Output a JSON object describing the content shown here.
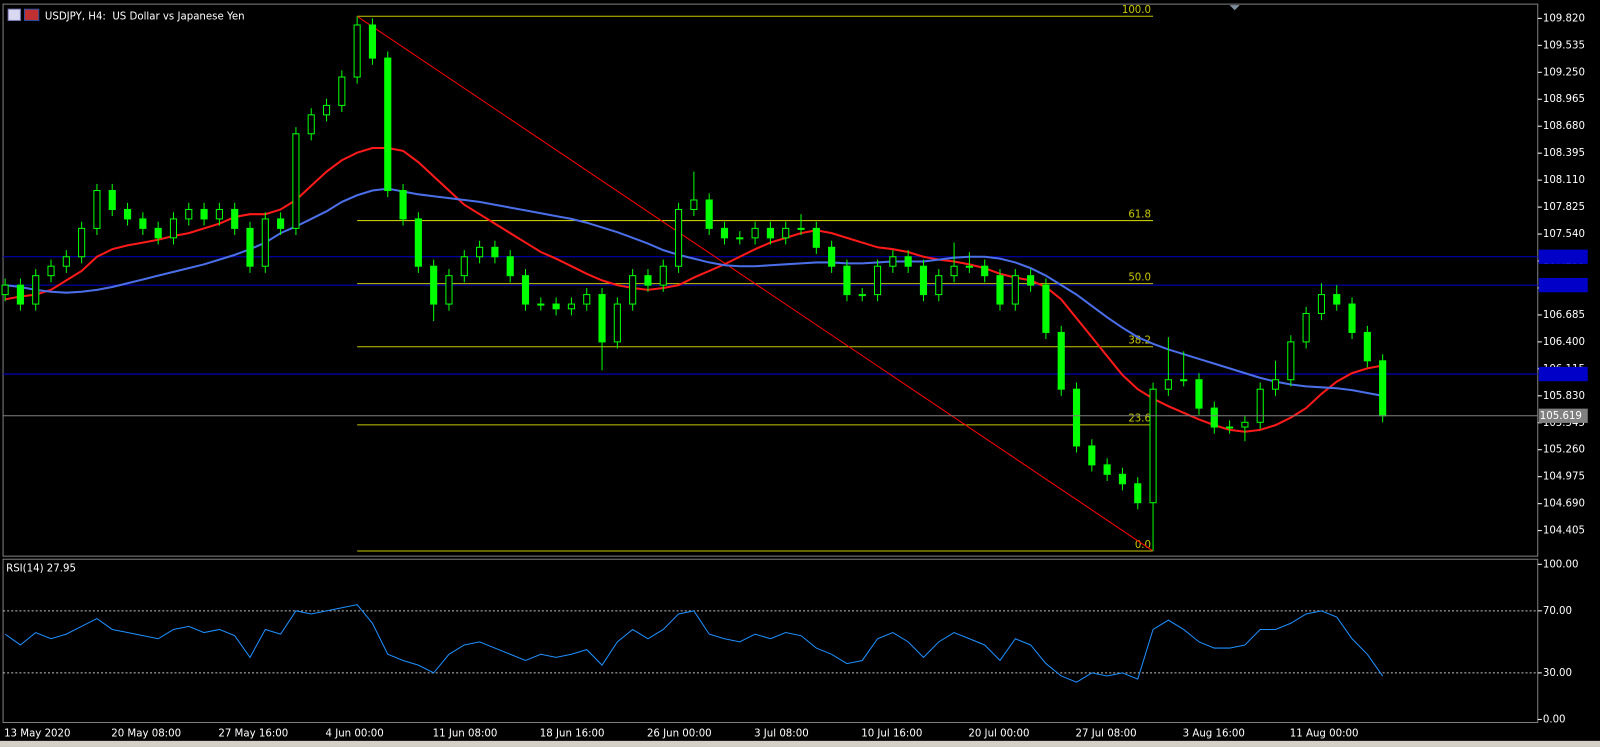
{
  "chart_data": [
    {
      "type": "candlestick",
      "title": "USDJPY, H4:  US Dollar vs Japanese Yen",
      "color": "#00ff00",
      "categories": [
        "13 May 2020",
        null,
        null,
        null,
        null,
        null,
        null,
        "20 May 08:00",
        null,
        null,
        null,
        null,
        null,
        null,
        "27 May 16:00",
        null,
        null,
        null,
        null,
        null,
        null,
        "4 Jun 00:00",
        null,
        null,
        null,
        null,
        null,
        null,
        "11 Jun 08:00",
        null,
        null,
        null,
        null,
        null,
        null,
        "18 Jun 16:00",
        null,
        null,
        null,
        null,
        null,
        null,
        "26 Jun 00:00",
        null,
        null,
        null,
        null,
        null,
        null,
        "3 Jul 08:00",
        null,
        null,
        null,
        null,
        null,
        null,
        "10 Jul 16:00",
        null,
        null,
        null,
        null,
        null,
        null,
        "20 Jul 00:00",
        null,
        null,
        null,
        null,
        null,
        null,
        "27 Jul 08:00",
        null,
        null,
        null,
        null,
        null,
        null,
        "3 Aug 16:00",
        null,
        null,
        null,
        null,
        null,
        null,
        "11 Aug 00:00",
        null,
        null,
        null,
        null,
        null,
        null
      ],
      "candles": [
        [
          106.9,
          107.07,
          106.83,
          107.0
        ],
        [
          107.0,
          107.07,
          106.73,
          106.8
        ],
        [
          106.8,
          107.17,
          106.73,
          107.1
        ],
        [
          107.1,
          107.27,
          107.03,
          107.2
        ],
        [
          107.2,
          107.37,
          107.13,
          107.3
        ],
        [
          107.3,
          107.67,
          107.23,
          107.6
        ],
        [
          107.6,
          108.07,
          107.53,
          108.0
        ],
        [
          108.0,
          108.07,
          107.73,
          107.8
        ],
        [
          107.8,
          107.87,
          107.63,
          107.7
        ],
        [
          107.7,
          107.77,
          107.53,
          107.6
        ],
        [
          107.6,
          107.67,
          107.43,
          107.5
        ],
        [
          107.5,
          107.77,
          107.43,
          107.7
        ],
        [
          107.7,
          107.87,
          107.63,
          107.8
        ],
        [
          107.8,
          107.87,
          107.63,
          107.7
        ],
        [
          107.7,
          107.87,
          107.63,
          107.8
        ],
        [
          107.8,
          107.87,
          107.53,
          107.6
        ],
        [
          107.6,
          107.67,
          107.13,
          107.2
        ],
        [
          107.2,
          107.77,
          107.13,
          107.7
        ],
        [
          107.7,
          107.77,
          107.53,
          107.6
        ],
        [
          107.6,
          108.67,
          107.53,
          108.6
        ],
        [
          108.6,
          108.87,
          108.53,
          108.8
        ],
        [
          108.8,
          108.97,
          108.73,
          108.9
        ],
        [
          108.9,
          109.27,
          108.83,
          109.2
        ],
        [
          109.2,
          109.842,
          109.13,
          109.75
        ],
        [
          109.75,
          109.82,
          109.33,
          109.4
        ],
        [
          109.4,
          109.47,
          107.93,
          108.0
        ],
        [
          108.0,
          108.07,
          107.63,
          107.7
        ],
        [
          107.7,
          107.77,
          107.13,
          107.2
        ],
        [
          107.2,
          107.27,
          106.62,
          106.8
        ],
        [
          106.8,
          107.17,
          106.73,
          107.1
        ],
        [
          107.1,
          107.37,
          107.03,
          107.3
        ],
        [
          107.3,
          107.47,
          107.23,
          107.4
        ],
        [
          107.4,
          107.47,
          107.23,
          107.3
        ],
        [
          107.3,
          107.37,
          107.03,
          107.1
        ],
        [
          107.1,
          107.17,
          106.73,
          106.8
        ],
        [
          106.8,
          106.87,
          106.73,
          106.8
        ],
        [
          106.8,
          106.87,
          106.68,
          106.75
        ],
        [
          106.75,
          106.87,
          106.68,
          106.8
        ],
        [
          106.8,
          106.97,
          106.73,
          106.9
        ],
        [
          106.9,
          106.97,
          106.1,
          106.4
        ],
        [
          106.4,
          106.87,
          106.33,
          106.8
        ],
        [
          106.8,
          107.17,
          106.73,
          107.1
        ],
        [
          107.1,
          107.17,
          106.93,
          107.0
        ],
        [
          107.0,
          107.27,
          106.93,
          107.2
        ],
        [
          107.2,
          107.87,
          107.13,
          107.8
        ],
        [
          107.8,
          108.2,
          107.73,
          107.9
        ],
        [
          107.9,
          107.97,
          107.53,
          107.6
        ],
        [
          107.6,
          107.67,
          107.43,
          107.5
        ],
        [
          107.5,
          107.57,
          107.43,
          107.5
        ],
        [
          107.5,
          107.67,
          107.43,
          107.6
        ],
        [
          107.6,
          107.67,
          107.43,
          107.5
        ],
        [
          107.5,
          107.67,
          107.43,
          107.6
        ],
        [
          107.6,
          107.75,
          107.53,
          107.6
        ],
        [
          107.6,
          107.67,
          107.33,
          107.4
        ],
        [
          107.4,
          107.47,
          107.13,
          107.2
        ],
        [
          107.2,
          107.27,
          106.83,
          106.9
        ],
        [
          106.9,
          106.97,
          106.83,
          106.9
        ],
        [
          106.9,
          107.27,
          106.83,
          107.2
        ],
        [
          107.2,
          107.37,
          107.13,
          107.3
        ],
        [
          107.3,
          107.37,
          107.13,
          107.2
        ],
        [
          107.2,
          107.27,
          106.83,
          106.9
        ],
        [
          106.9,
          107.17,
          106.83,
          107.1
        ],
        [
          107.1,
          107.45,
          107.03,
          107.2
        ],
        [
          107.2,
          107.35,
          107.13,
          107.2
        ],
        [
          107.2,
          107.27,
          107.03,
          107.1
        ],
        [
          107.1,
          107.17,
          106.73,
          106.8
        ],
        [
          106.8,
          107.17,
          106.73,
          107.1
        ],
        [
          107.1,
          107.17,
          106.93,
          107.0
        ],
        [
          107.0,
          107.07,
          106.43,
          106.5
        ],
        [
          106.5,
          106.57,
          105.83,
          105.9
        ],
        [
          105.9,
          105.97,
          105.23,
          105.3
        ],
        [
          105.3,
          105.37,
          105.03,
          105.1
        ],
        [
          105.1,
          105.17,
          104.93,
          105.0
        ],
        [
          105.0,
          105.07,
          104.83,
          104.9
        ],
        [
          104.9,
          104.97,
          104.63,
          104.7
        ],
        [
          104.7,
          105.97,
          104.189,
          105.9
        ],
        [
          105.9,
          106.45,
          105.83,
          106.0
        ],
        [
          106.0,
          106.3,
          105.93,
          106.0
        ],
        [
          106.0,
          106.07,
          105.63,
          105.7
        ],
        [
          105.7,
          105.77,
          105.43,
          105.5
        ],
        [
          105.5,
          105.57,
          105.43,
          105.5
        ],
        [
          105.5,
          105.62,
          105.35,
          105.55
        ],
        [
          105.55,
          105.97,
          105.48,
          105.9
        ],
        [
          105.9,
          106.2,
          105.83,
          106.0
        ],
        [
          106.0,
          106.47,
          105.93,
          106.4
        ],
        [
          106.4,
          106.77,
          106.33,
          106.7
        ],
        [
          106.7,
          107.02,
          106.63,
          106.9
        ],
        [
          106.9,
          107.0,
          106.73,
          106.8
        ],
        [
          106.8,
          106.87,
          106.43,
          106.5
        ],
        [
          106.5,
          106.57,
          106.13,
          106.2
        ],
        [
          106.2,
          106.27,
          105.55,
          105.619
        ]
      ],
      "ylim": [
        104.135,
        109.96
      ],
      "yticks": [
        {
          "value": 109.82,
          "label": "109.820"
        },
        {
          "value": 109.535,
          "label": "109.535"
        },
        {
          "value": 109.25,
          "label": "109.250"
        },
        {
          "value": 108.965,
          "label": "108.965"
        },
        {
          "value": 108.68,
          "label": "108.680"
        },
        {
          "value": 108.395,
          "label": "108.395"
        },
        {
          "value": 108.11,
          "label": "108.110"
        },
        {
          "value": 107.825,
          "label": "107.825"
        },
        {
          "value": 107.54,
          "label": "107.540"
        },
        {
          "value": 107.255,
          "label": "107.255"
        },
        {
          "value": 106.97,
          "label": "106.970"
        },
        {
          "value": 106.685,
          "label": "106.685"
        },
        {
          "value": 106.4,
          "label": "106.400"
        },
        {
          "value": 106.115,
          "label": "106.115"
        },
        {
          "value": 105.83,
          "label": "105.830"
        },
        {
          "value": 105.545,
          "label": "105.545"
        },
        {
          "value": 105.26,
          "label": "105.260"
        },
        {
          "value": 104.975,
          "label": "104.975"
        },
        {
          "value": 104.69,
          "label": "104.690"
        },
        {
          "value": 104.405,
          "label": "104.405"
        }
      ],
      "overlays": [
        {
          "color": "#ff1a1a",
          "values": [
            106.85,
            106.88,
            106.9,
            106.95,
            107.05,
            107.15,
            107.3,
            107.38,
            107.42,
            107.45,
            107.48,
            107.52,
            107.55,
            107.6,
            107.65,
            107.72,
            107.75,
            107.75,
            107.8,
            107.9,
            108.05,
            108.2,
            108.32,
            108.4,
            108.45,
            108.45,
            108.42,
            108.3,
            108.15,
            108.0,
            107.85,
            107.75,
            107.65,
            107.55,
            107.45,
            107.35,
            107.28,
            107.2,
            107.12,
            107.05,
            107.0,
            106.97,
            106.95,
            106.97,
            107.0,
            107.08,
            107.15,
            107.22,
            107.3,
            107.38,
            107.45,
            107.5,
            107.55,
            107.58,
            107.55,
            107.5,
            107.45,
            107.4,
            107.38,
            107.35,
            107.3,
            107.27,
            107.25,
            107.22,
            107.18,
            107.12,
            107.08,
            107.05,
            106.98,
            106.85,
            106.65,
            106.45,
            106.25,
            106.05,
            105.9,
            105.8,
            105.72,
            105.65,
            105.58,
            105.52,
            105.47,
            105.45,
            105.47,
            105.52,
            105.6,
            105.7,
            105.85,
            105.98,
            106.07,
            106.12,
            106.15
          ]
        },
        {
          "color": "#4a6fe8",
          "values": [
            107.0,
            106.98,
            106.95,
            106.93,
            106.92,
            106.93,
            106.95,
            106.98,
            107.02,
            107.06,
            107.1,
            107.14,
            107.18,
            107.22,
            107.27,
            107.32,
            107.38,
            107.45,
            107.55,
            107.62,
            107.7,
            107.78,
            107.88,
            107.95,
            108.0,
            108.02,
            107.99,
            107.96,
            107.94,
            107.92,
            107.9,
            107.88,
            107.85,
            107.82,
            107.79,
            107.76,
            107.73,
            107.7,
            107.66,
            107.61,
            107.56,
            107.5,
            107.44,
            107.37,
            107.32,
            107.28,
            107.24,
            107.21,
            107.2,
            107.2,
            107.21,
            107.22,
            107.23,
            107.24,
            107.24,
            107.23,
            107.23,
            107.24,
            107.25,
            107.25,
            107.25,
            107.27,
            107.29,
            107.3,
            107.3,
            107.28,
            107.24,
            107.18,
            107.1,
            107.0,
            106.9,
            106.78,
            106.66,
            106.55,
            106.45,
            106.38,
            106.32,
            106.27,
            106.22,
            106.17,
            106.12,
            106.07,
            106.02,
            105.98,
            105.95,
            105.93,
            105.92,
            105.91,
            105.89,
            105.86,
            105.83
          ]
        }
      ],
      "fibonacci": {
        "color": "#c8c800",
        "trend_color": "#ff0000",
        "levels": [
          {
            "value": 0,
            "label": "0.0"
          },
          {
            "value": 23.6,
            "label": "23.6"
          },
          {
            "value": 38.2,
            "label": "38.2"
          },
          {
            "value": 50,
            "label": "50.0"
          },
          {
            "value": 61.8,
            "label": "61.8"
          },
          {
            "value": 100,
            "label": "100.0"
          }
        ]
      },
      "hlines": {
        "color": "#0000c8",
        "values": [
          107.3,
          107.0,
          106.06
        ]
      },
      "last_price": {
        "value": 105.619,
        "label": "105.619",
        "color": "#808080"
      }
    },
    {
      "type": "line",
      "title": "RSI(14) 27.95",
      "color": "#1e90ff",
      "values": [
        55,
        48,
        56,
        52,
        55,
        60,
        65,
        58,
        56,
        54,
        52,
        58,
        60,
        56,
        58,
        54,
        40,
        58,
        55,
        70,
        68,
        70,
        72,
        74,
        62,
        42,
        38,
        35,
        30,
        42,
        48,
        50,
        46,
        42,
        38,
        42,
        40,
        42,
        45,
        35,
        50,
        58,
        52,
        58,
        68,
        70,
        55,
        52,
        50,
        55,
        52,
        56,
        54,
        46,
        42,
        36,
        38,
        52,
        56,
        50,
        40,
        50,
        56,
        52,
        48,
        38,
        52,
        48,
        36,
        28,
        24,
        30,
        28,
        30,
        26,
        58,
        64,
        58,
        50,
        46,
        46,
        48,
        58,
        58,
        62,
        68,
        70,
        66,
        52,
        42,
        27.95
      ],
      "ylim": [
        0,
        100
      ],
      "yticks": [
        {
          "value": 100,
          "label": "100.00"
        },
        {
          "value": 70,
          "label": "70.00"
        },
        {
          "value": 30,
          "label": "30.00"
        },
        {
          "value": 0,
          "label": "0.00"
        }
      ],
      "levels": [
        70,
        30
      ]
    }
  ]
}
